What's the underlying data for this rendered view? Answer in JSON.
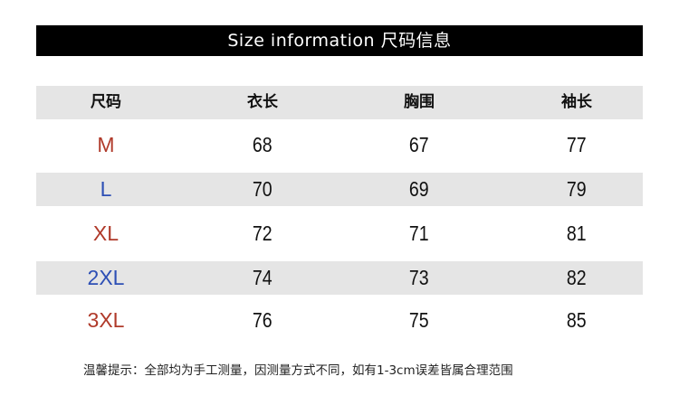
{
  "title": "Size information 尺码信息",
  "table": {
    "headers": [
      "尺码",
      "衣长",
      "胸围",
      "袖长"
    ],
    "rows": [
      {
        "size": "M",
        "length": "68",
        "chest": "67",
        "sleeve": "77",
        "color": "#b03a2a"
      },
      {
        "size": "L",
        "length": "70",
        "chest": "69",
        "sleeve": "79",
        "color": "#2d4fb5"
      },
      {
        "size": "XL",
        "length": "72",
        "chest": "71",
        "sleeve": "81",
        "color": "#b03a2a"
      },
      {
        "size": "2XL",
        "length": "74",
        "chest": "73",
        "sleeve": "82",
        "color": "#2d4fb5"
      },
      {
        "size": "3XL",
        "length": "76",
        "chest": "75",
        "sleeve": "85",
        "color": "#b03a2a"
      }
    ]
  },
  "note": "温馨提示：全部均为手工测量，因测量方式不同，如有1-3cm误差皆属合理范围"
}
